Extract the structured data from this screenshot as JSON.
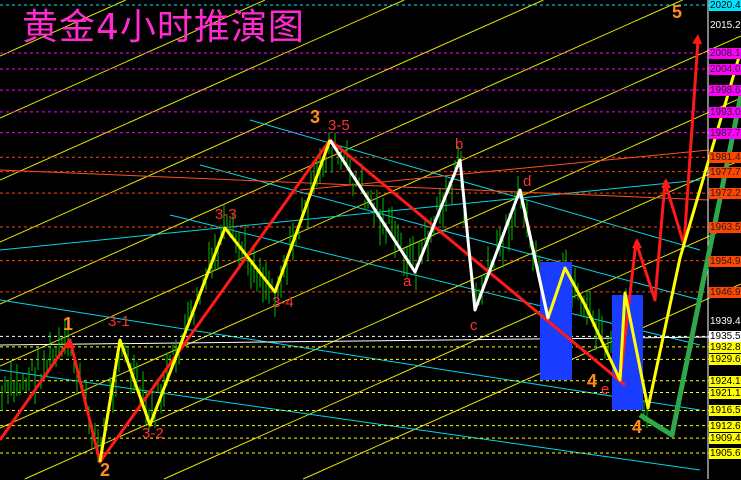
{
  "title": "黄金4小时推演图",
  "chart_data": {
    "type": "candlestick-analysis",
    "title": "黄金4小时推演图",
    "price_axis": [
      {
        "value": "2020.4",
        "color": "#00e5ff"
      },
      {
        "value": "2015.2",
        "color": "#000000"
      },
      {
        "value": "2008.1",
        "color": "#ff00ff"
      },
      {
        "value": "2004.0",
        "color": "#ff00ff"
      },
      {
        "value": "1998.6",
        "color": "#ff00ff"
      },
      {
        "value": "1993.0",
        "color": "#ff00ff"
      },
      {
        "value": "1987.7",
        "color": "#ff00ff"
      },
      {
        "value": "1981.4",
        "color": "#ff4500"
      },
      {
        "value": "1977.7",
        "color": "#ff4500"
      },
      {
        "value": "1972.2",
        "color": "#ff4500"
      },
      {
        "value": "1963.5",
        "color": "#ff4500"
      },
      {
        "value": "1954.9",
        "color": "#ff4500"
      },
      {
        "value": "1946.9",
        "color": "#ff4500"
      },
      {
        "value": "1939.4",
        "color": "#000000"
      },
      {
        "value": "1935.5",
        "color": "#ffffff"
      },
      {
        "value": "1932.8",
        "color": "#ffff00"
      },
      {
        "value": "1929.6",
        "color": "#ffff00"
      },
      {
        "value": "1924.1",
        "color": "#ffff00"
      },
      {
        "value": "1921.1",
        "color": "#ffff00"
      },
      {
        "value": "1916.5",
        "color": "#ffff00"
      },
      {
        "value": "1912.6",
        "color": "#ffff00"
      },
      {
        "value": "1909.4",
        "color": "#ffff00"
      },
      {
        "value": "1905.6",
        "color": "#ffff00"
      }
    ],
    "wave_labels": [
      {
        "text": "1",
        "color": "#ff8c1a"
      },
      {
        "text": "2",
        "color": "#ff8c1a"
      },
      {
        "text": "3",
        "color": "#ff8c1a"
      },
      {
        "text": "3-1",
        "color": "#ff3030"
      },
      {
        "text": "3-2",
        "color": "#ff3030"
      },
      {
        "text": "3-3",
        "color": "#ff3030"
      },
      {
        "text": "3-4",
        "color": "#ff3030"
      },
      {
        "text": "3-5",
        "color": "#ff3030"
      },
      {
        "text": "a",
        "color": "#ff3030"
      },
      {
        "text": "b",
        "color": "#ff3030"
      },
      {
        "text": "c",
        "color": "#ff3030"
      },
      {
        "text": "d",
        "color": "#ff3030"
      },
      {
        "text": "e",
        "color": "#ff3030"
      },
      {
        "text": "4",
        "color": "#ff8c1a"
      },
      {
        "text": "4",
        "color": "#ff8c1a"
      },
      {
        "text": "5",
        "color": "#ff8c1a"
      }
    ],
    "colors": {
      "bars": "#00c000",
      "wave_red": "#ff1a1a",
      "wave_yellow": "#ffff00",
      "wave_white": "#ffffff",
      "wave_green": "#2ea84a",
      "box": "#1a3cff",
      "title": "#ff2bd0"
    }
  }
}
